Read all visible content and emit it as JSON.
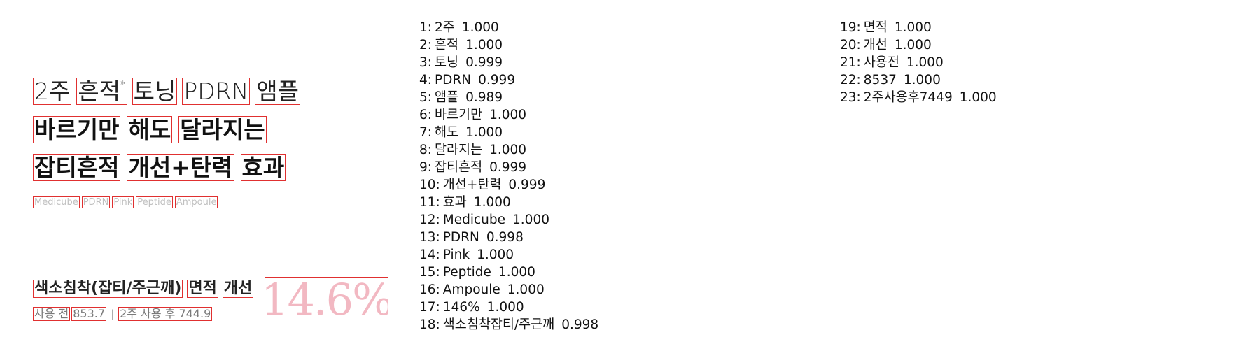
{
  "ad": {
    "title_line1": [
      "2주",
      "흔적",
      "토닝",
      "PDRN",
      "앰플"
    ],
    "title_line1_asterisk": "*",
    "title_line2": [
      "바르기만",
      "해도",
      "달라지는"
    ],
    "title_line3": [
      "잡티흔적",
      "개선+탄력",
      "효과"
    ],
    "brand_line": [
      "Medicube",
      "PDRN",
      "Pink",
      "Peptide",
      "Ampoule"
    ],
    "stat_line": [
      "색소침착(잡티/주근깨)",
      "면적",
      "개선"
    ],
    "before_label": "사용 전",
    "before_value": "853.7",
    "separator": "|",
    "after_text": "2주 사용 후 744.9",
    "percent": "14.6%"
  },
  "ocr_results": [
    {
      "index": "1:",
      "text": "2주",
      "score": "1.000"
    },
    {
      "index": "2:",
      "text": "흔적",
      "score": "1.000"
    },
    {
      "index": "3:",
      "text": "토닝",
      "score": "0.999"
    },
    {
      "index": "4:",
      "text": "PDRN",
      "score": "0.999"
    },
    {
      "index": "5:",
      "text": "앰플",
      "score": "0.989"
    },
    {
      "index": "6:",
      "text": "바르기만",
      "score": "1.000"
    },
    {
      "index": "7:",
      "text": "해도",
      "score": "1.000"
    },
    {
      "index": "8:",
      "text": "달라지는",
      "score": "1.000"
    },
    {
      "index": "9:",
      "text": "잡티흔적",
      "score": "0.999"
    },
    {
      "index": "10:",
      "text": "개선+탄력",
      "score": "0.999"
    },
    {
      "index": "11:",
      "text": "효과",
      "score": "1.000"
    },
    {
      "index": "12:",
      "text": "Medicube",
      "score": "1.000"
    },
    {
      "index": "13:",
      "text": "PDRN",
      "score": "0.998"
    },
    {
      "index": "14:",
      "text": "Pink",
      "score": "1.000"
    },
    {
      "index": "15:",
      "text": "Peptide",
      "score": "1.000"
    },
    {
      "index": "16:",
      "text": "Ampoule",
      "score": "1.000"
    },
    {
      "index": "17:",
      "text": "146%",
      "score": "1.000"
    },
    {
      "index": "18:",
      "text": "색소침착잡티/주근깨",
      "score": "0.998"
    },
    {
      "index": "19:",
      "text": "면적",
      "score": "1.000"
    },
    {
      "index": "20:",
      "text": "개선",
      "score": "1.000"
    },
    {
      "index": "21:",
      "text": "사용전",
      "score": "1.000"
    },
    {
      "index": "22:",
      "text": "8537",
      "score": "1.000"
    },
    {
      "index": "23:",
      "text": "2주사용후7449",
      "score": "1.000"
    }
  ],
  "colors": {
    "box_border": "#e03030",
    "percent_text": "#f2b8c2"
  }
}
